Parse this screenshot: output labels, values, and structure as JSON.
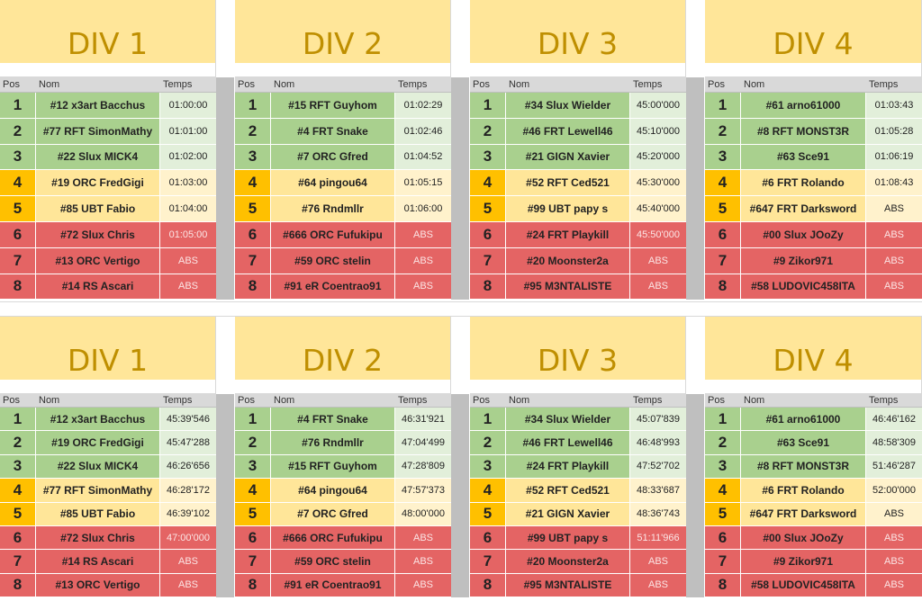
{
  "headers": {
    "pos": "Pos",
    "nom": "Nom",
    "temps": "Temps"
  },
  "colors": {
    "title_bg": "#ffe699",
    "title_text": "#bf8f00",
    "green": "#a9d08e",
    "orange": "#ffc000",
    "red": "#e46464"
  },
  "blocks": [
    {
      "divisions": [
        {
          "title": "DIV 1",
          "rows": [
            {
              "pos": "1",
              "name": "#12 x3art Bacchus",
              "time": "01:00:00",
              "status": "green"
            },
            {
              "pos": "2",
              "name": "#77 RFT SimonMathy",
              "time": "01:01:00",
              "status": "green"
            },
            {
              "pos": "3",
              "name": "#22 Slux MICK4",
              "time": "01:02:00",
              "status": "green"
            },
            {
              "pos": "4",
              "name": "#19 ORC FredGigi",
              "time": "01:03:00",
              "status": "yellow"
            },
            {
              "pos": "5",
              "name": "#85 UBT Fabio",
              "time": "01:04:00",
              "status": "yellow"
            },
            {
              "pos": "6",
              "name": "#72 Slux Chris",
              "time": "01:05:00",
              "status": "red"
            },
            {
              "pos": "7",
              "name": "#13 ORC Vertigo",
              "time": "ABS",
              "status": "red"
            },
            {
              "pos": "8",
              "name": "#14 RS Ascari",
              "time": "ABS",
              "status": "red"
            }
          ]
        },
        {
          "title": "DIV 2",
          "rows": [
            {
              "pos": "1",
              "name": "#15 RFT Guyhom",
              "time": "01:02:29",
              "status": "green"
            },
            {
              "pos": "2",
              "name": "#4 FRT Snake",
              "time": "01:02:46",
              "status": "green"
            },
            {
              "pos": "3",
              "name": "#7 ORC Gfred",
              "time": "01:04:52",
              "status": "green"
            },
            {
              "pos": "4",
              "name": "#64 pingou64",
              "time": "01:05:15",
              "status": "yellow"
            },
            {
              "pos": "5",
              "name": "#76 Rndmllr",
              "time": "01:06:00",
              "status": "yellow"
            },
            {
              "pos": "6",
              "name": "#666 ORC Fufukipu",
              "time": "ABS",
              "status": "red"
            },
            {
              "pos": "7",
              "name": "#59 ORC stelin",
              "time": "ABS",
              "status": "red"
            },
            {
              "pos": "8",
              "name": "#91 eR Coentrao91",
              "time": "ABS",
              "status": "red"
            }
          ]
        },
        {
          "title": "DIV 3",
          "rows": [
            {
              "pos": "1",
              "name": "#34 Slux Wielder",
              "time": "45:00'000",
              "status": "green"
            },
            {
              "pos": "2",
              "name": "#46 FRT Lewell46",
              "time": "45:10'000",
              "status": "green"
            },
            {
              "pos": "3",
              "name": "#21 GIGN Xavier",
              "time": "45:20'000",
              "status": "green"
            },
            {
              "pos": "4",
              "name": "#52 RFT Ced521",
              "time": "45:30'000",
              "status": "yellow"
            },
            {
              "pos": "5",
              "name": "#99 UBT papy s",
              "time": "45:40'000",
              "status": "yellow"
            },
            {
              "pos": "6",
              "name": "#24 FRT Playkill",
              "time": "45:50'000",
              "status": "red"
            },
            {
              "pos": "7",
              "name": "#20 Moonster2a",
              "time": "ABS",
              "status": "red"
            },
            {
              "pos": "8",
              "name": "#95 M3NTALISTE",
              "time": "ABS",
              "status": "red"
            }
          ]
        },
        {
          "title": "DIV 4",
          "rows": [
            {
              "pos": "1",
              "name": "#61 arno61000",
              "time": "01:03:43",
              "status": "green"
            },
            {
              "pos": "2",
              "name": "#8 RFT MONST3R",
              "time": "01:05:28",
              "status": "green"
            },
            {
              "pos": "3",
              "name": "#63 Sce91",
              "time": "01:06:19",
              "status": "green"
            },
            {
              "pos": "4",
              "name": "#6 FRT Rolando",
              "time": "01:08:43",
              "status": "yellow"
            },
            {
              "pos": "5",
              "name": "#647 FRT Darksword",
              "time": "ABS",
              "status": "yellow"
            },
            {
              "pos": "6",
              "name": "#00 Slux JOoZy",
              "time": "ABS",
              "status": "red"
            },
            {
              "pos": "7",
              "name": "#9 Zikor971",
              "time": "ABS",
              "status": "red"
            },
            {
              "pos": "8",
              "name": "#58 LUDOVIC458ITA",
              "time": "ABS",
              "status": "red"
            }
          ]
        }
      ]
    },
    {
      "divisions": [
        {
          "title": "DIV 1",
          "rows": [
            {
              "pos": "1",
              "name": "#12 x3art Bacchus",
              "time": "45:39'546",
              "status": "green"
            },
            {
              "pos": "2",
              "name": "#19 ORC FredGigi",
              "time": "45:47'288",
              "status": "green"
            },
            {
              "pos": "3",
              "name": "#22 Slux MICK4",
              "time": "46:26'656",
              "status": "green"
            },
            {
              "pos": "4",
              "name": "#77 RFT SimonMathy",
              "time": "46:28'172",
              "status": "yellow"
            },
            {
              "pos": "5",
              "name": "#85 UBT Fabio",
              "time": "46:39'102",
              "status": "yellow"
            },
            {
              "pos": "6",
              "name": "#72 Slux Chris",
              "time": "47:00'000",
              "status": "red"
            },
            {
              "pos": "7",
              "name": "#14 RS Ascari",
              "time": "ABS",
              "status": "red"
            },
            {
              "pos": "8",
              "name": "#13 ORC Vertigo",
              "time": "ABS",
              "status": "red"
            }
          ]
        },
        {
          "title": "DIV 2",
          "rows": [
            {
              "pos": "1",
              "name": "#4 FRT Snake",
              "time": "46:31'921",
              "status": "green"
            },
            {
              "pos": "2",
              "name": "#76 Rndmllr",
              "time": "47:04'499",
              "status": "green"
            },
            {
              "pos": "3",
              "name": "#15 RFT Guyhom",
              "time": "47:28'809",
              "status": "green"
            },
            {
              "pos": "4",
              "name": "#64 pingou64",
              "time": "47:57'373",
              "status": "yellow"
            },
            {
              "pos": "5",
              "name": "#7 ORC Gfred",
              "time": "48:00'000",
              "status": "yellow"
            },
            {
              "pos": "6",
              "name": "#666 ORC Fufukipu",
              "time": "ABS",
              "status": "red"
            },
            {
              "pos": "7",
              "name": "#59 ORC stelin",
              "time": "ABS",
              "status": "red"
            },
            {
              "pos": "8",
              "name": "#91 eR Coentrao91",
              "time": "ABS",
              "status": "red"
            }
          ]
        },
        {
          "title": "DIV 3",
          "rows": [
            {
              "pos": "1",
              "name": "#34 Slux Wielder",
              "time": "45:07'839",
              "status": "green"
            },
            {
              "pos": "2",
              "name": "#46 FRT Lewell46",
              "time": "46:48'993",
              "status": "green"
            },
            {
              "pos": "3",
              "name": "#24 FRT Playkill",
              "time": "47:52'702",
              "status": "green"
            },
            {
              "pos": "4",
              "name": "#52 RFT Ced521",
              "time": "48:33'687",
              "status": "yellow"
            },
            {
              "pos": "5",
              "name": "#21 GIGN Xavier",
              "time": "48:36'743",
              "status": "yellow"
            },
            {
              "pos": "6",
              "name": "#99 UBT papy s",
              "time": "51:11'966",
              "status": "red"
            },
            {
              "pos": "7",
              "name": "#20 Moonster2a",
              "time": "ABS",
              "status": "red"
            },
            {
              "pos": "8",
              "name": "#95 M3NTALISTE",
              "time": "ABS",
              "status": "red"
            }
          ]
        },
        {
          "title": "DIV 4",
          "rows": [
            {
              "pos": "1",
              "name": "#61 arno61000",
              "time": "46:46'162",
              "status": "green"
            },
            {
              "pos": "2",
              "name": "#63 Sce91",
              "time": "48:58'309",
              "status": "green"
            },
            {
              "pos": "3",
              "name": "#8 RFT MONST3R",
              "time": "51:46'287",
              "status": "green"
            },
            {
              "pos": "4",
              "name": "#6 FRT Rolando",
              "time": "52:00'000",
              "status": "yellow"
            },
            {
              "pos": "5",
              "name": "#647 FRT Darksword",
              "time": "ABS",
              "status": "yellow"
            },
            {
              "pos": "6",
              "name": "#00 Slux JOoZy",
              "time": "ABS",
              "status": "red"
            },
            {
              "pos": "7",
              "name": "#9 Zikor971",
              "time": "ABS",
              "status": "red"
            },
            {
              "pos": "8",
              "name": "#58 LUDOVIC458ITA",
              "time": "ABS",
              "status": "red"
            }
          ]
        }
      ]
    }
  ]
}
